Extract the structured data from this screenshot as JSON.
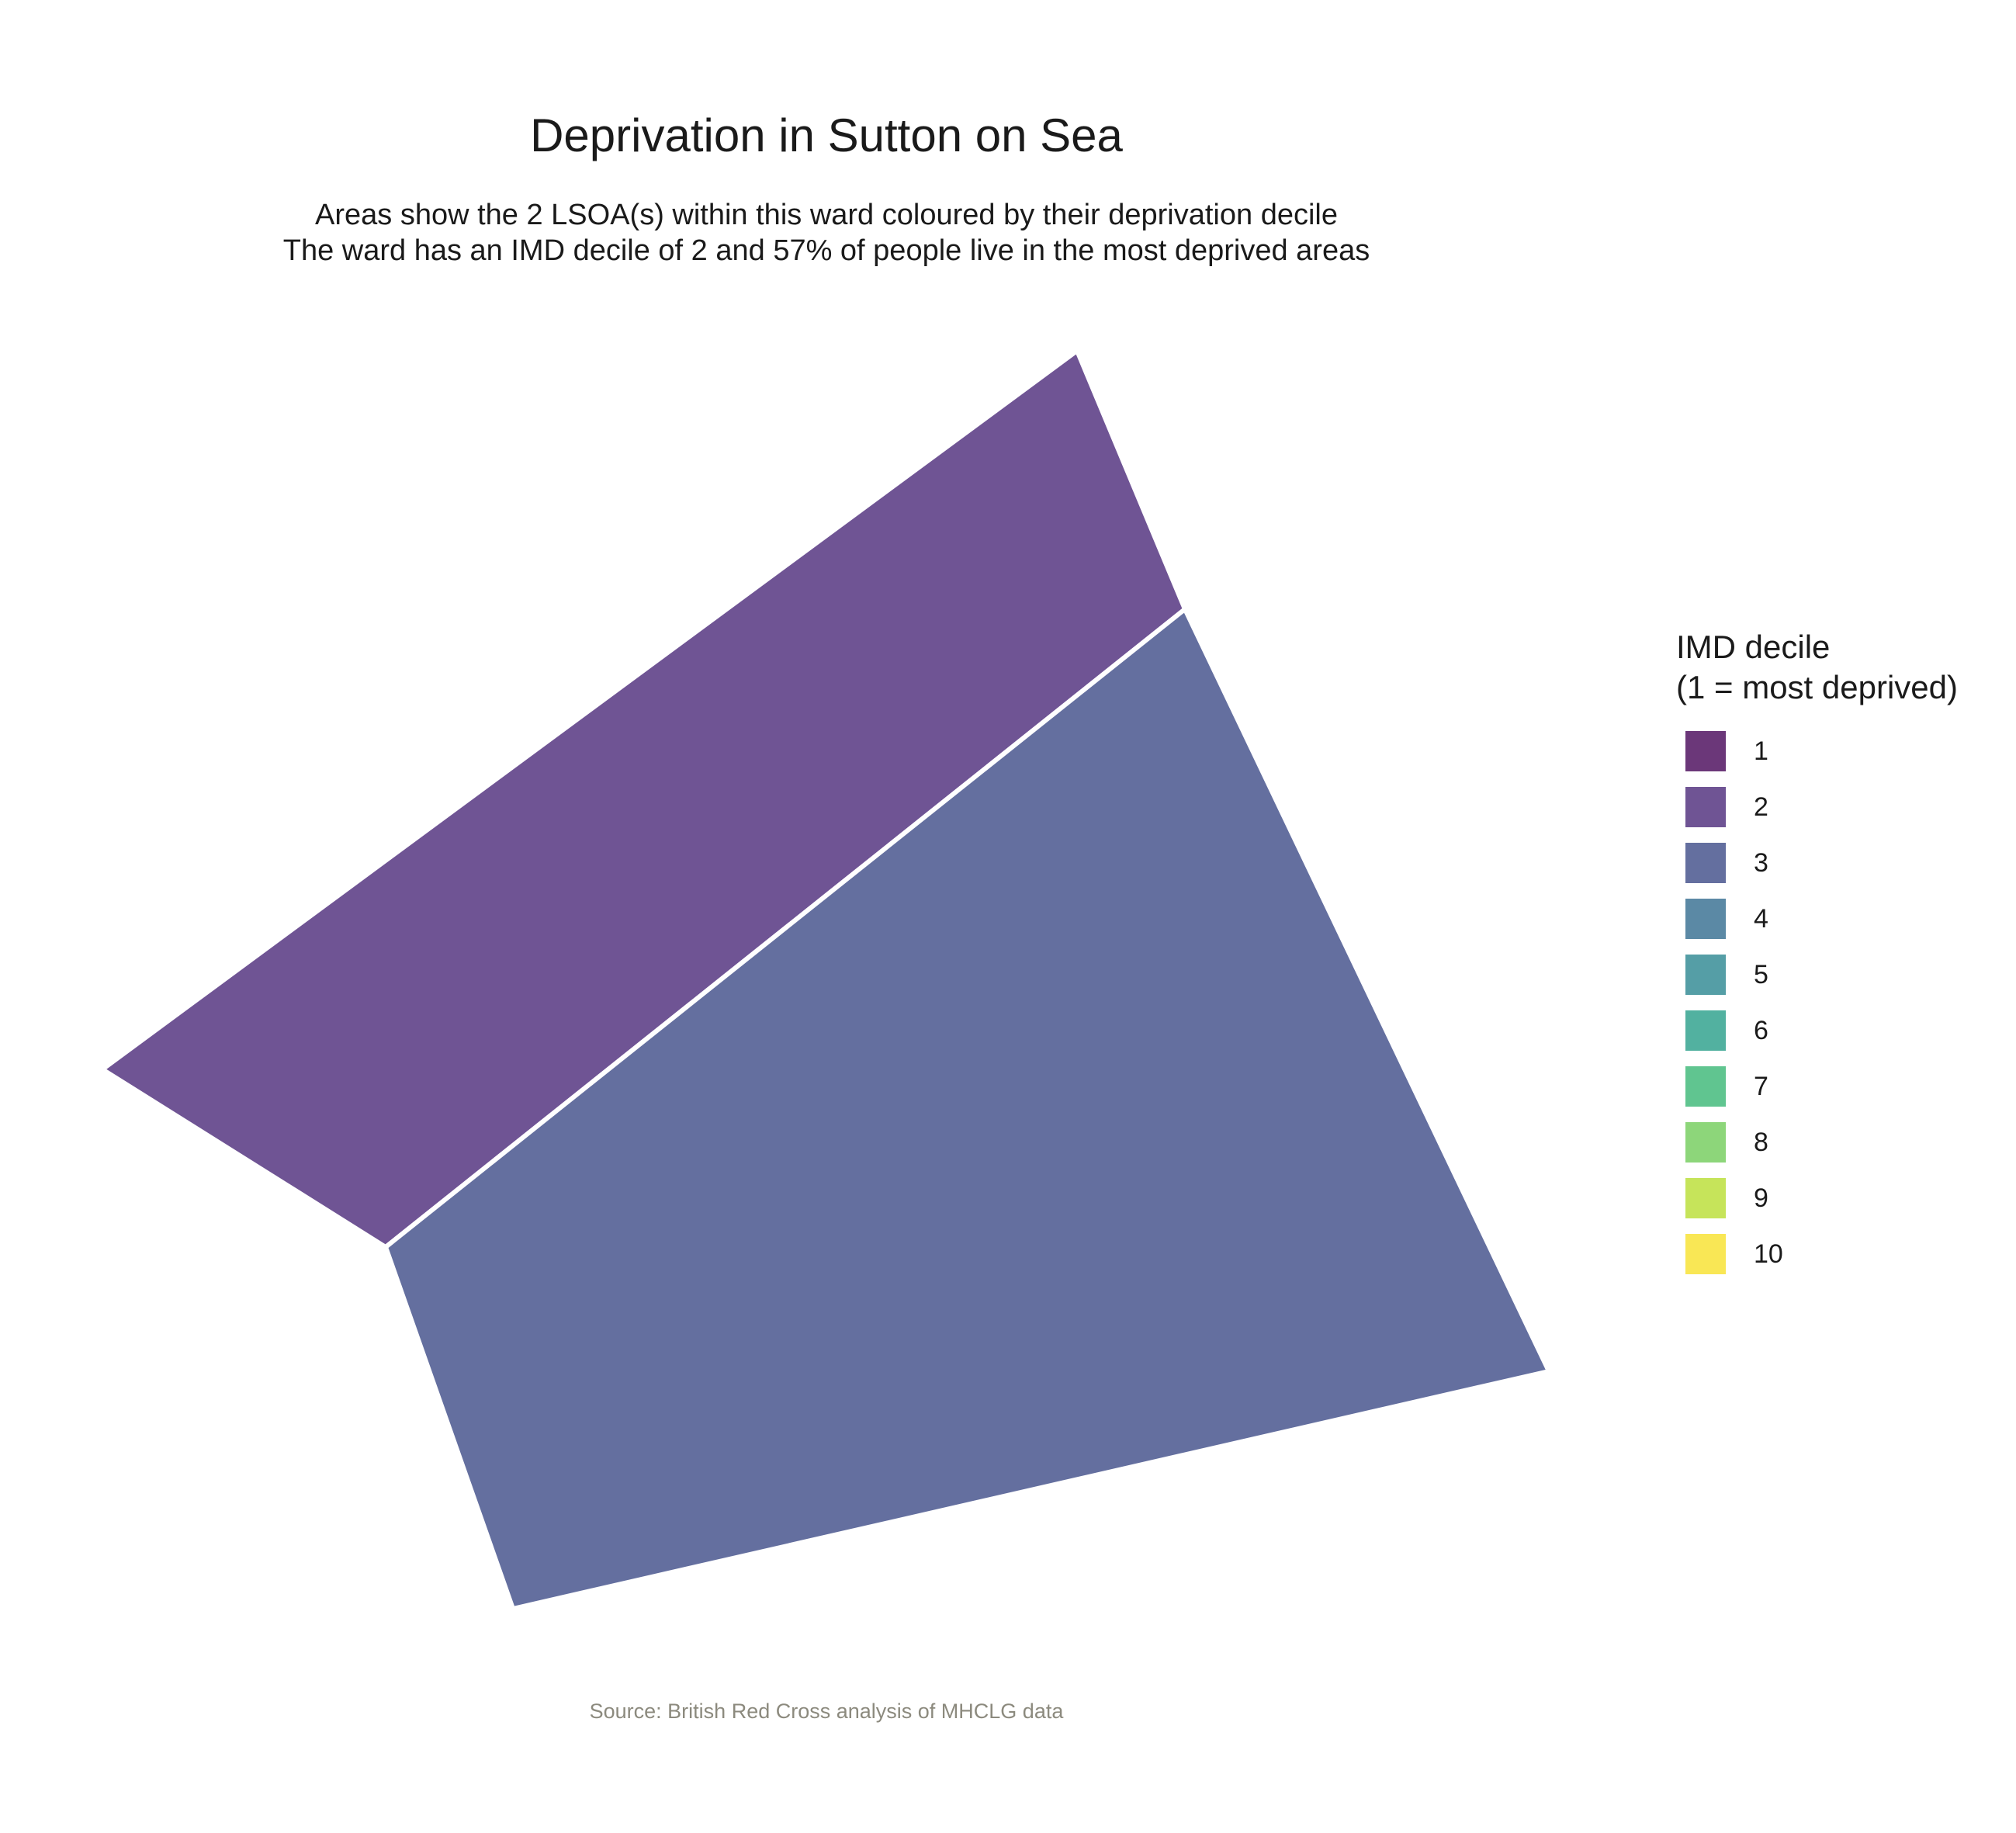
{
  "title": "Deprivation in Sutton on Sea",
  "subtitle": {
    "line1": "Areas show the 2 LSOA(s) within this ward coloured by their deprivation decile",
    "line2": "The ward has an IMD decile of 2 and 57% of people live in the most deprived areas"
  },
  "caption": "Source: British Red Cross analysis of MHCLG data",
  "legend": {
    "title_line1": "IMD decile",
    "title_line2": "(1 = most deprived)",
    "items": [
      {
        "label": "1",
        "color": "#6b3779"
      },
      {
        "label": "2",
        "color": "#6f5494"
      },
      {
        "label": "3",
        "color": "#646f9f"
      },
      {
        "label": "4",
        "color": "#5b89a5"
      },
      {
        "label": "5",
        "color": "#559ea6"
      },
      {
        "label": "6",
        "color": "#52b1a0"
      },
      {
        "label": "7",
        "color": "#60c590"
      },
      {
        "label": "8",
        "color": "#8dd67a"
      },
      {
        "label": "9",
        "color": "#c6e45a"
      },
      {
        "label": "10",
        "color": "#f9e755"
      }
    ]
  },
  "map_areas": [
    {
      "name": "northern-lsoa",
      "imd_decile": 2,
      "color": "#6f5494"
    },
    {
      "name": "southern-lsoa",
      "imd_decile": 3,
      "color": "#646f9f"
    }
  ]
}
